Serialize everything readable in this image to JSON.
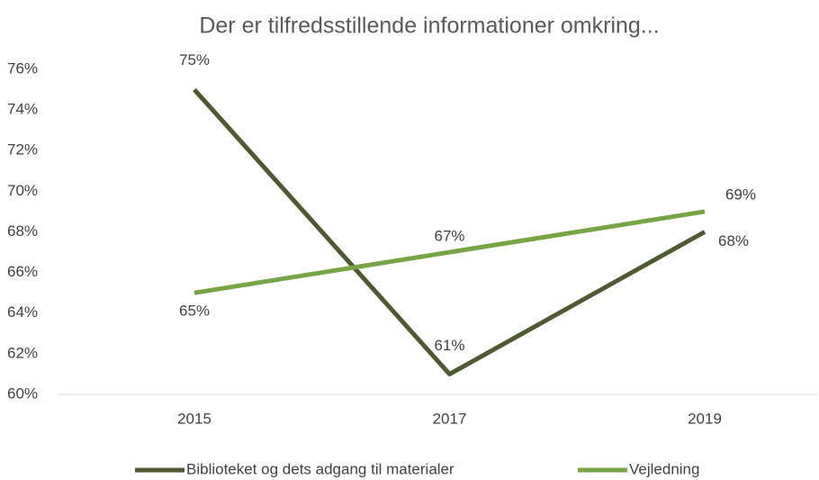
{
  "chart_data": {
    "type": "line",
    "title": "Der er tilfredsstillende informationer omkring...",
    "categories": [
      "2015",
      "2017",
      "2019"
    ],
    "series": [
      {
        "name": "Biblioteket og dets adgang til materialer",
        "color": "#4e5a30",
        "values": [
          75,
          61,
          68
        ],
        "value_labels": [
          "75%",
          "61%",
          "68%"
        ]
      },
      {
        "name": "Vejledning",
        "color": "#76a545",
        "values": [
          65,
          67,
          69
        ],
        "value_labels": [
          "65%",
          "67%",
          "69%"
        ]
      }
    ],
    "ylim": [
      60,
      76
    ],
    "yticks": [
      {
        "value": 60,
        "label": "60%"
      },
      {
        "value": 62,
        "label": "62%"
      },
      {
        "value": 64,
        "label": "64%"
      },
      {
        "value": 66,
        "label": "66%"
      },
      {
        "value": 68,
        "label": "68%"
      },
      {
        "value": 70,
        "label": "70%"
      },
      {
        "value": 72,
        "label": "72%"
      },
      {
        "value": 74,
        "label": "74%"
      },
      {
        "value": 76,
        "label": "76%"
      }
    ],
    "legend": "bottom"
  }
}
